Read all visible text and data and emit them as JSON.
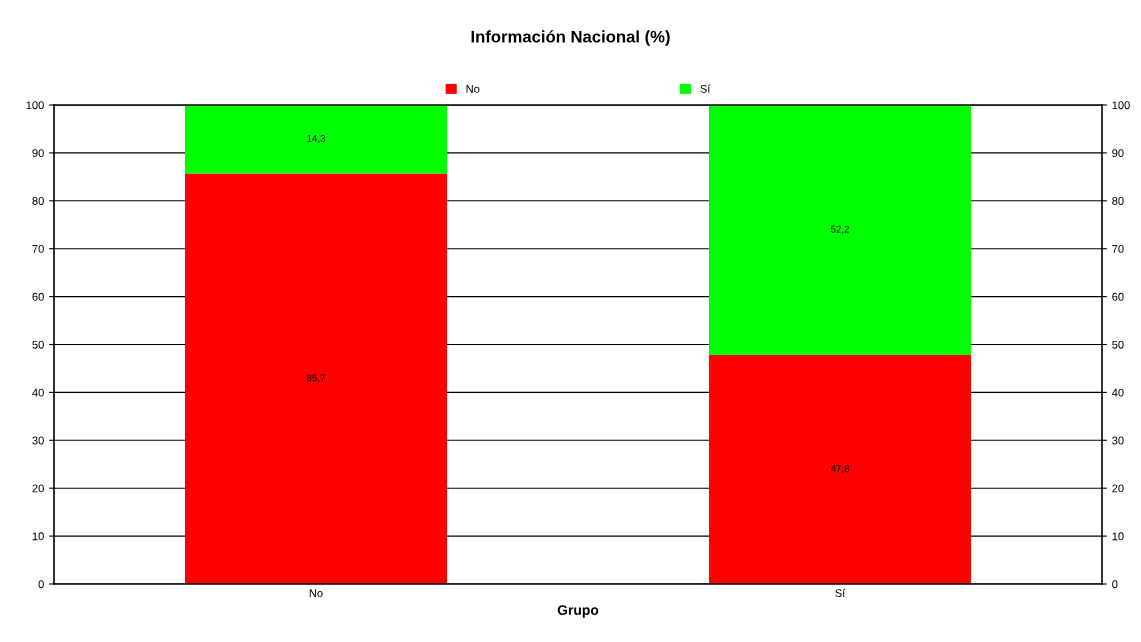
{
  "chart_data": {
    "type": "bar",
    "title": "Información Nacional (%)",
    "xlabel": "Grupo",
    "categories": [
      "No",
      "Sí"
    ],
    "stacked": true,
    "series": [
      {
        "name": "No",
        "color": "#ff0000",
        "values": [
          85.7,
          47.8
        ],
        "value_labels": [
          "85,7",
          "47,8"
        ]
      },
      {
        "name": "Sí",
        "color": "#00ff00",
        "values": [
          14.3,
          52.2
        ],
        "value_labels": [
          "14,3",
          "52,2"
        ]
      }
    ],
    "ylim": [
      0,
      100
    ],
    "yticks": [
      0,
      10,
      20,
      30,
      40,
      50,
      60,
      70,
      80,
      90,
      100
    ],
    "y2lim": [
      0,
      100
    ],
    "y2ticks": [
      0,
      10,
      20,
      30,
      40,
      50,
      60,
      70,
      80,
      90,
      100
    ],
    "grid": true,
    "legend": "top"
  }
}
